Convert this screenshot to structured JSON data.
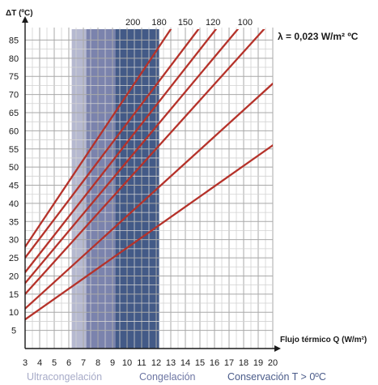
{
  "chart_data": {
    "type": "line",
    "ylabel": "ΔT (ºC)",
    "xlabel": "Flujo térmico Q (W/m²)",
    "annotation": "λ = 0,023 W/m² ºC",
    "xlim": [
      3,
      20
    ],
    "ylim": [
      0,
      88
    ],
    "x_ticks": [
      3,
      4,
      5,
      6,
      7,
      8,
      9,
      10,
      11,
      12,
      13,
      14,
      15,
      16,
      17,
      18,
      19,
      20
    ],
    "y_ticks": [
      5,
      10,
      15,
      20,
      25,
      30,
      35,
      40,
      45,
      50,
      55,
      60,
      65,
      70,
      75,
      80,
      85
    ],
    "grid": true,
    "line_color": "#b5322a",
    "series": [
      {
        "name": "200",
        "x": [
          3,
          13.0
        ],
        "y": [
          28,
          88
        ]
      },
      {
        "name": "180",
        "x": [
          3,
          14.9
        ],
        "y": [
          25,
          88
        ]
      },
      {
        "name": "150",
        "x": [
          3,
          16.1
        ],
        "y": [
          21,
          88
        ]
      },
      {
        "name": "120",
        "x": [
          3,
          17.6
        ],
        "y": [
          18,
          88
        ]
      },
      {
        "name": "100",
        "x": [
          3,
          19.4
        ],
        "y": [
          15,
          88
        ]
      },
      {
        "name": "",
        "x": [
          3,
          20
        ],
        "y": [
          11,
          73
        ]
      },
      {
        "name": "",
        "x": [
          3,
          20
        ],
        "y": [
          8,
          56
        ]
      }
    ],
    "top_labels": [
      {
        "text": "200",
        "x": 10.4
      },
      {
        "text": "180",
        "x": 12.2
      },
      {
        "text": "150",
        "x": 14.0
      },
      {
        "text": "120",
        "x": 15.9
      },
      {
        "text": "100",
        "x": 18.1
      }
    ],
    "zones": [
      {
        "label": "Ultracongelación",
        "x_from": 6.2,
        "x_to": 7.2,
        "color": "#b6b9d0"
      },
      {
        "label": "Congelación",
        "x_from": 7.2,
        "x_to": 9.2,
        "color": "#7b83ad"
      },
      {
        "label": "Conservación T > 0ºC",
        "x_from": 9.2,
        "x_to": 12.2,
        "color": "#435a87"
      }
    ],
    "zone_label_colors": [
      "#a7abc8",
      "#6d76a3",
      "#4a5b89"
    ]
  }
}
